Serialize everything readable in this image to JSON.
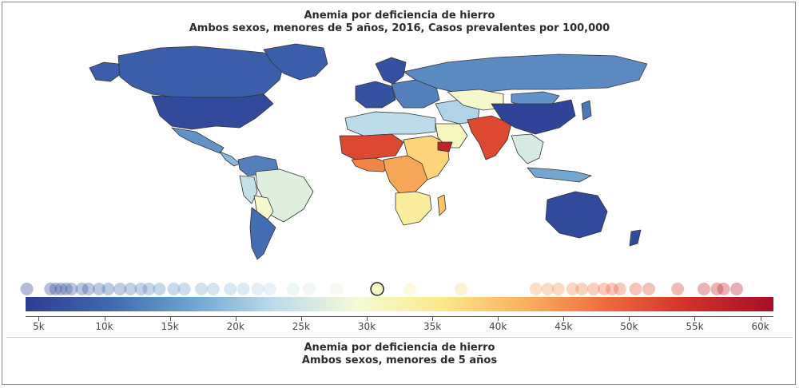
{
  "header": {
    "title": "Anemia por deficiencia de hierro",
    "subtitle": "Ambos sexos, menores de 5 años, 2016, Casos prevalentes por 100,000"
  },
  "footer": {
    "title": "Anemia por deficiencia de hierro",
    "subtitle": "Ambos sexos, menores de 5 años"
  },
  "legend": {
    "min": 4000,
    "max": 61000,
    "tick_labels": [
      "5k",
      "10k",
      "15k",
      "20k",
      "25k",
      "30k",
      "35k",
      "40k",
      "45k",
      "50k",
      "55k",
      "60k"
    ],
    "tick_values": [
      5000,
      10000,
      15000,
      20000,
      25000,
      30000,
      35000,
      40000,
      45000,
      50000,
      55000,
      60000
    ],
    "colors": [
      "#2c3d93",
      "#3f67b0",
      "#6fa3d0",
      "#bcdcec",
      "#f4fad5",
      "#fde98a",
      "#f9b15e",
      "#ef6a3a",
      "#d02f2a",
      "#a50f26"
    ],
    "selected_value": 30800,
    "country_values": [
      4100,
      5900,
      6300,
      6700,
      7100,
      7500,
      8300,
      8800,
      9600,
      10300,
      11200,
      12000,
      12800,
      13400,
      14200,
      15300,
      16100,
      17400,
      18300,
      19600,
      20600,
      21700,
      22600,
      24400,
      25600,
      27700,
      33300,
      37200,
      42900,
      43800,
      44600,
      45700,
      46400,
      47300,
      48100,
      48700,
      49300,
      50500,
      51500,
      53700,
      55700,
      56700,
      57200,
      58200
    ]
  },
  "map_regions": [
    {
      "name": "canada",
      "value": 9000
    },
    {
      "name": "alaska",
      "value": 9000
    },
    {
      "name": "greenland",
      "value": 9000
    },
    {
      "name": "united-states",
      "value": 6000
    },
    {
      "name": "mexico",
      "value": 15000
    },
    {
      "name": "central-america",
      "value": 19000
    },
    {
      "name": "colombia-venezuela",
      "value": 13000
    },
    {
      "name": "peru",
      "value": 24000
    },
    {
      "name": "brazil",
      "value": 27000
    },
    {
      "name": "bolivia-paraguay",
      "value": 30000
    },
    {
      "name": "argentina-chile",
      "value": 11000
    },
    {
      "name": "western-europe",
      "value": 7000
    },
    {
      "name": "scandinavia",
      "value": 7000
    },
    {
      "name": "eastern-europe",
      "value": 13000
    },
    {
      "name": "russia",
      "value": 14000
    },
    {
      "name": "north-africa",
      "value": 23000
    },
    {
      "name": "sahel-west-africa",
      "value": 52000
    },
    {
      "name": "west-africa-coast",
      "value": 46000
    },
    {
      "name": "central-africa",
      "value": 43000
    },
    {
      "name": "east-africa",
      "value": 38000
    },
    {
      "name": "southern-africa",
      "value": 34000
    },
    {
      "name": "madagascar",
      "value": 40000
    },
    {
      "name": "middle-east",
      "value": 22000
    },
    {
      "name": "arabian-peninsula",
      "value": 31000
    },
    {
      "name": "yemen",
      "value": 57000
    },
    {
      "name": "central-asia",
      "value": 30000
    },
    {
      "name": "india",
      "value": 52000
    },
    {
      "name": "china",
      "value": 5000
    },
    {
      "name": "mongolia",
      "value": 15000
    },
    {
      "name": "southeast-asia",
      "value": 26000
    },
    {
      "name": "indonesia",
      "value": 17000
    },
    {
      "name": "japan",
      "value": 12000
    },
    {
      "name": "australia",
      "value": 6000
    },
    {
      "name": "new-zealand",
      "value": 6000
    }
  ]
}
